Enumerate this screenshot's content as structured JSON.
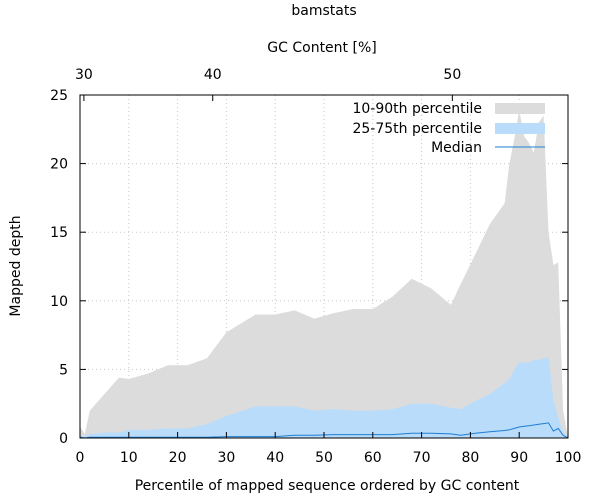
{
  "chart_data": {
    "type": "area",
    "title": "bamstats",
    "xlabel": "Percentile of mapped sequence ordered by GC content",
    "ylabel": "Mapped depth",
    "x2label": "GC Content [%]",
    "xlim": [
      0,
      100
    ],
    "ylim": [
      0,
      25
    ],
    "grid": true,
    "legend_position": "top-right",
    "x_ticks": [
      "0",
      "10",
      "20",
      "30",
      "40",
      "50",
      "60",
      "70",
      "80",
      "90",
      "100"
    ],
    "y_ticks": [
      "0",
      "5",
      "10",
      "15",
      "20",
      "25"
    ],
    "x2_ticks": [
      {
        "label": "30",
        "at_percentile": 0.8
      },
      {
        "label": "40",
        "at_percentile": 27.2
      },
      {
        "label": "50",
        "at_percentile": 76.3
      }
    ],
    "x": [
      0,
      1,
      2,
      3,
      5,
      8,
      10,
      14,
      18,
      22,
      26,
      30,
      36,
      40,
      44,
      48,
      52,
      56,
      60,
      64,
      68,
      72,
      76,
      78,
      81,
      84,
      87,
      88,
      89,
      90,
      91,
      92,
      93,
      94,
      95,
      96,
      97,
      98,
      99,
      100
    ],
    "series": [
      {
        "name": "10-90th percentile",
        "color": "#dcdcdc",
        "lower": [
          0,
          0,
          0,
          0,
          0,
          0,
          0,
          0,
          0,
          0,
          0,
          0,
          0,
          0,
          0,
          0,
          0,
          0,
          0,
          0,
          0,
          0,
          0,
          0,
          0,
          0,
          0,
          0,
          0,
          0,
          0,
          0,
          0,
          0,
          0,
          0,
          0,
          0,
          0,
          0
        ],
        "upper": [
          0.8,
          0.3,
          2.0,
          2.4,
          3.2,
          4.4,
          4.3,
          4.7,
          5.3,
          5.3,
          5.8,
          7.7,
          9.0,
          9.0,
          9.3,
          8.7,
          9.1,
          9.4,
          9.4,
          10.3,
          11.6,
          10.9,
          9.7,
          11.2,
          13.4,
          15.6,
          17.1,
          20.0,
          21.8,
          23.9,
          22.0,
          21.5,
          20.8,
          23.0,
          23.5,
          15.0,
          12.6,
          12.8,
          2.0,
          0
        ]
      },
      {
        "name": "25-75th percentile",
        "color": "#b8dcfa",
        "lower": [
          0,
          0,
          0,
          0,
          0,
          0,
          0,
          0,
          0,
          0,
          0,
          0,
          0,
          0,
          0,
          0,
          0,
          0,
          0,
          0,
          0,
          0,
          0,
          0,
          0,
          0,
          0,
          0,
          0,
          0,
          0,
          0,
          0,
          0,
          0,
          0,
          0,
          0,
          0,
          0
        ],
        "upper": [
          0.2,
          0.1,
          0.3,
          0.3,
          0.4,
          0.4,
          0.6,
          0.6,
          0.7,
          0.7,
          1.0,
          1.6,
          2.3,
          2.3,
          2.3,
          2.0,
          2.1,
          2.0,
          2.0,
          2.1,
          2.5,
          2.5,
          2.2,
          2.1,
          2.7,
          3.2,
          4.0,
          4.3,
          5.0,
          5.5,
          5.5,
          5.5,
          5.7,
          5.7,
          5.8,
          5.9,
          2.8,
          1.5,
          0.4,
          0
        ]
      },
      {
        "name": "Median",
        "color": "#1f7ed2",
        "values": [
          0.05,
          0.0,
          0.05,
          0.05,
          0.05,
          0.05,
          0.05,
          0.05,
          0.05,
          0.05,
          0.05,
          0.1,
          0.1,
          0.1,
          0.2,
          0.2,
          0.25,
          0.25,
          0.25,
          0.25,
          0.35,
          0.35,
          0.3,
          0.2,
          0.35,
          0.45,
          0.55,
          0.6,
          0.7,
          0.8,
          0.85,
          0.9,
          0.95,
          1.0,
          1.05,
          1.1,
          0.5,
          0.7,
          0.2,
          0
        ]
      }
    ]
  }
}
